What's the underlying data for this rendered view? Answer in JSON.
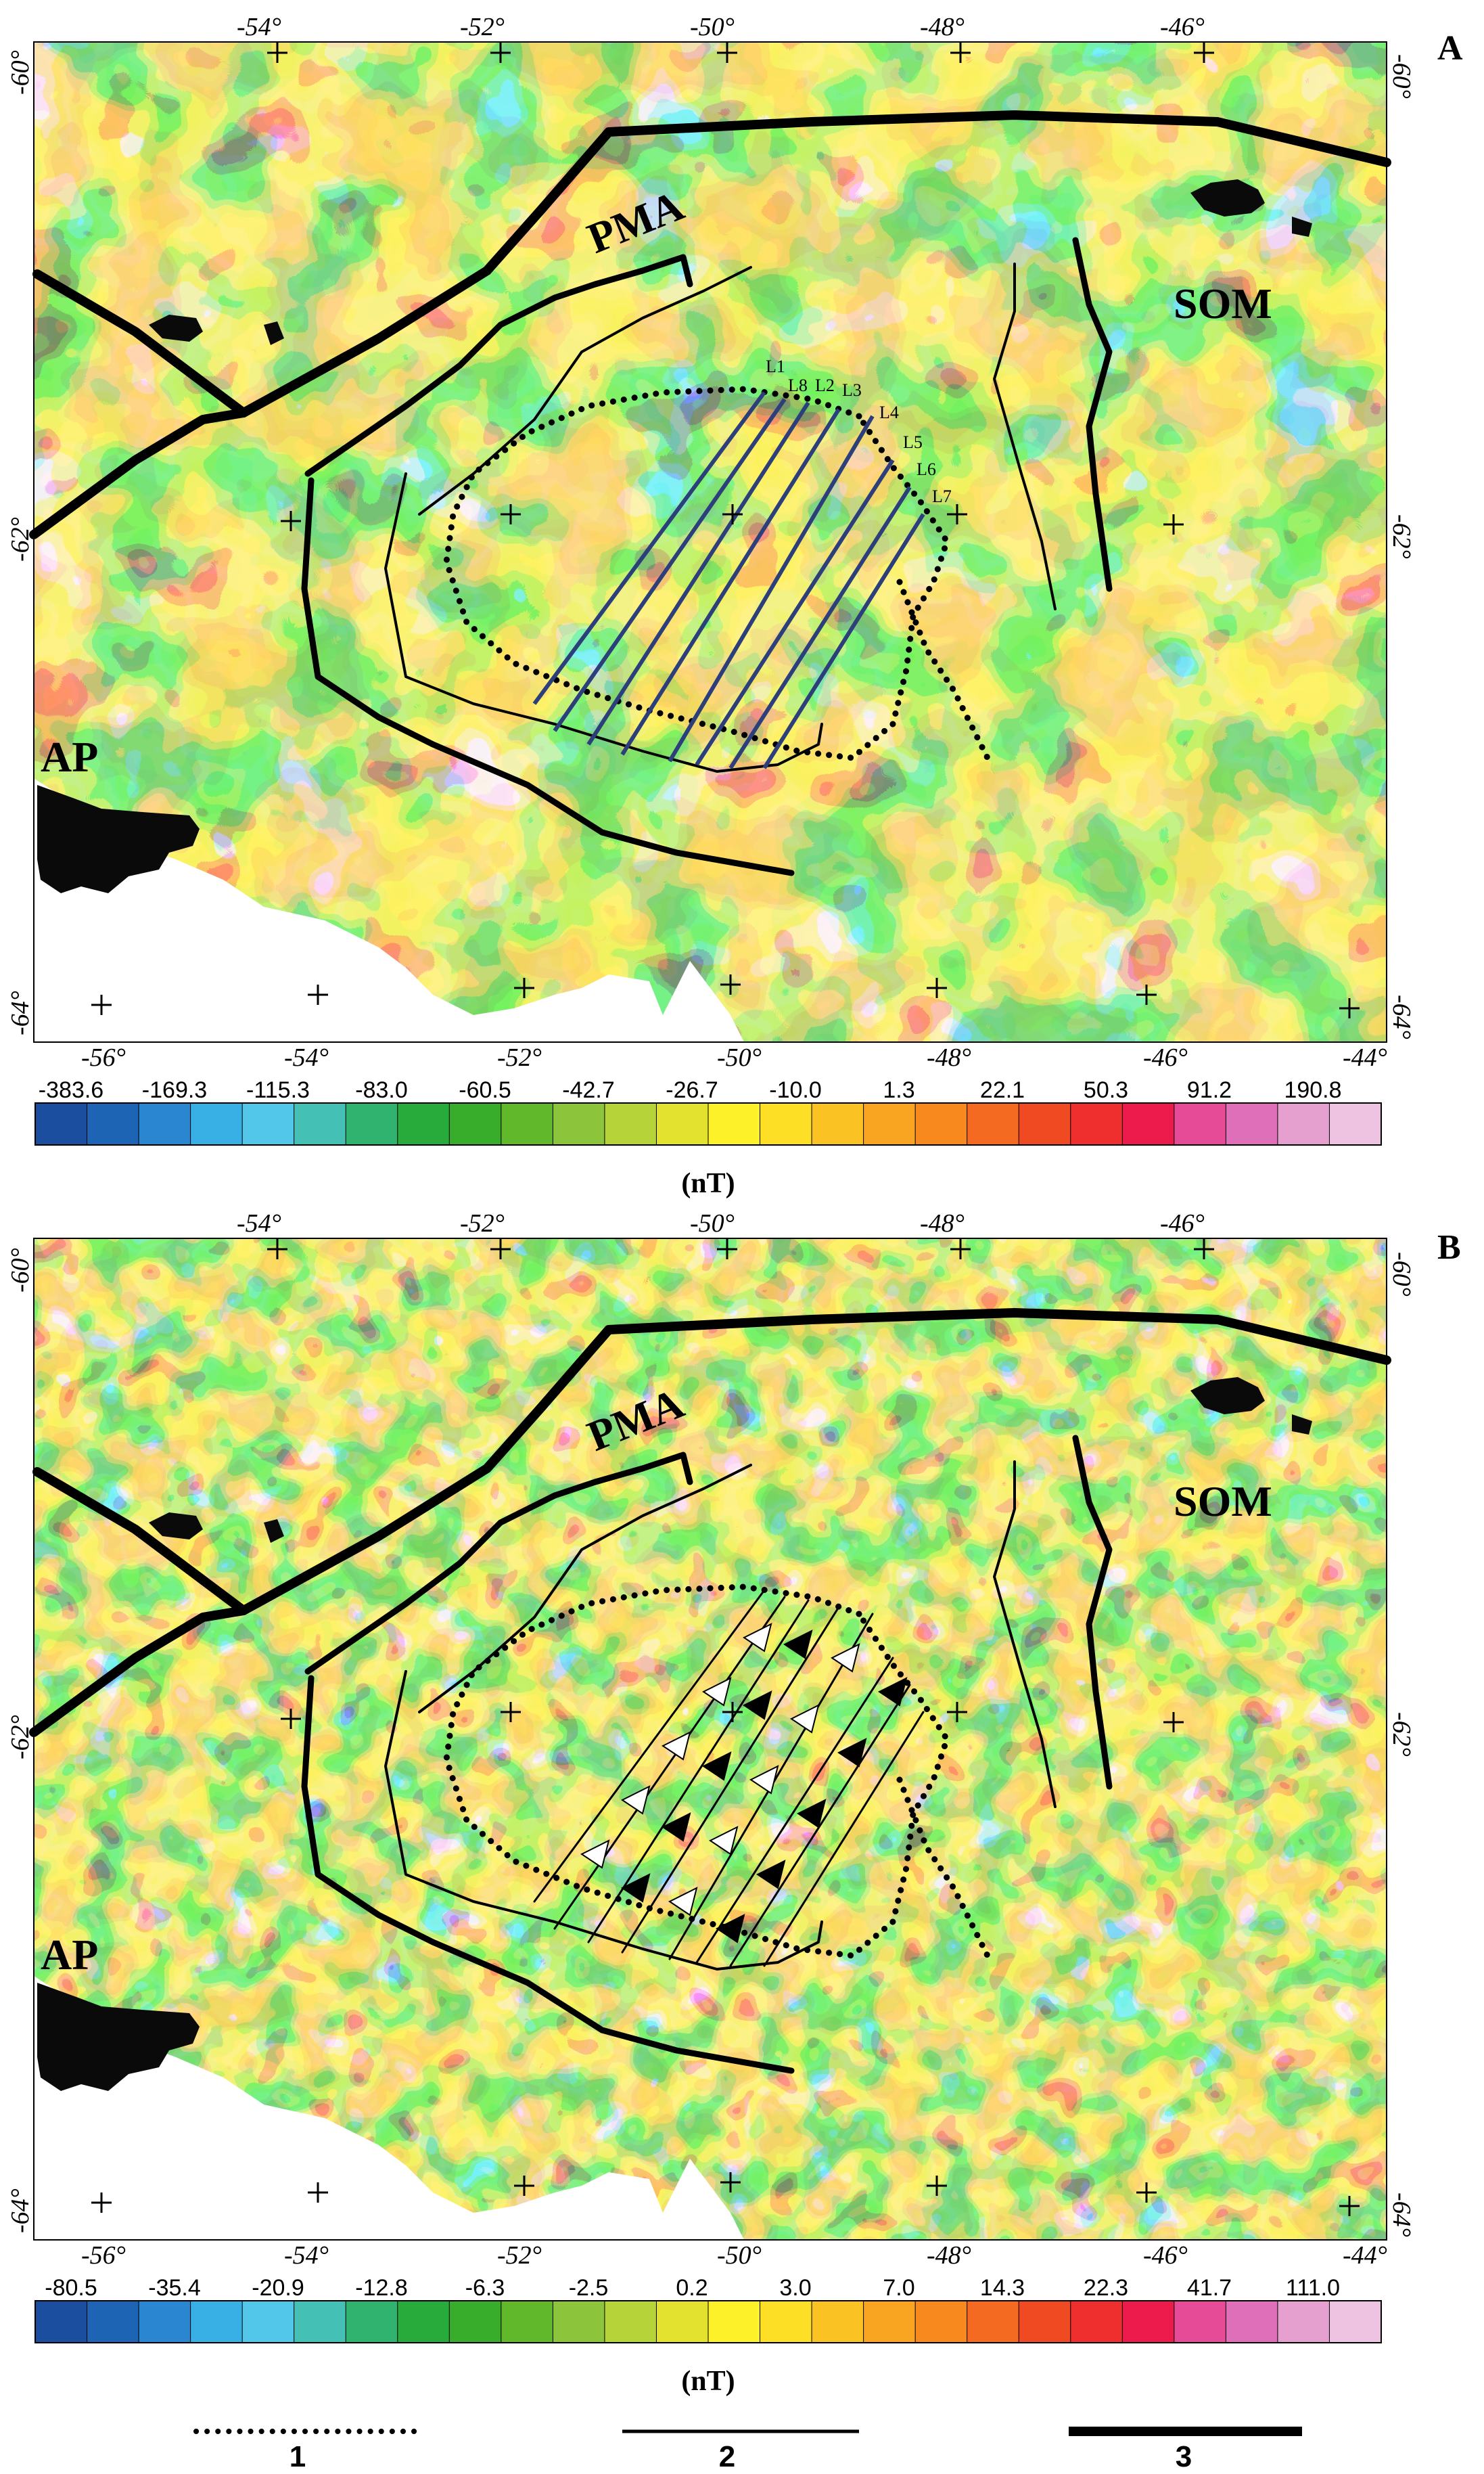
{
  "panels": [
    {
      "id": "A",
      "label": "A",
      "regions": {
        "pma": "PMA",
        "som": "SOM",
        "ap": "AP"
      },
      "profile_lines": [
        "L1",
        "L8",
        "L2",
        "L3",
        "L4",
        "L5",
        "L6",
        "L7"
      ],
      "colorbar": {
        "unit": "(nT)",
        "tick_labels": [
          "-383.6",
          "-169.3",
          "-115.3",
          "-83.0",
          "-60.5",
          "-42.7",
          "-26.7",
          "-10.0",
          "1.3",
          "22.1",
          "50.3",
          "91.2",
          "190.8"
        ]
      }
    },
    {
      "id": "B",
      "label": "B",
      "regions": {
        "pma": "PMA",
        "som": "SOM",
        "ap": "AP"
      },
      "colorbar": {
        "unit": "(nT)",
        "tick_labels": [
          "-80.5",
          "-35.4",
          "-20.9",
          "-12.8",
          "-6.3",
          "-2.5",
          "0.2",
          "3.0",
          "7.0",
          "14.3",
          "22.3",
          "41.7",
          "111.0"
        ]
      }
    }
  ],
  "axes": {
    "lon_top": [
      "-54°",
      "-52°",
      "-50°",
      "-48°",
      "-46°"
    ],
    "lon_bottom": [
      "-56°",
      "-54°",
      "-52°",
      "-50°",
      "-48°",
      "-46°",
      "-44°"
    ],
    "lat_left": [
      "-60°",
      "-62°",
      "-64°"
    ],
    "lat_right": [
      "-60°",
      "-62°",
      "-64°"
    ]
  },
  "legend": {
    "items": [
      {
        "number": "1",
        "style": "dotted"
      },
      {
        "number": "2",
        "style": "thin-line"
      },
      {
        "number": "3",
        "style": "thick-line"
      }
    ]
  },
  "colors": {
    "ramp": [
      "#1b4e9e",
      "#1d64b4",
      "#2a86d0",
      "#38b0e6",
      "#53c7e9",
      "#45c0b5",
      "#2fb36f",
      "#29ab3b",
      "#37ad2b",
      "#62b82b",
      "#8cc43c",
      "#b6d33a",
      "#e3e22e",
      "#fdf12a",
      "#fde026",
      "#fbc223",
      "#f9a521",
      "#f7891f",
      "#f46a20",
      "#f04a23",
      "#ee2f2e",
      "#ec1b4b",
      "#e64b97",
      "#df6fb8",
      "#e5a0d0",
      "#eec3e1"
    ],
    "profile_lines": "#2d3f7a",
    "structure": "#000000"
  }
}
